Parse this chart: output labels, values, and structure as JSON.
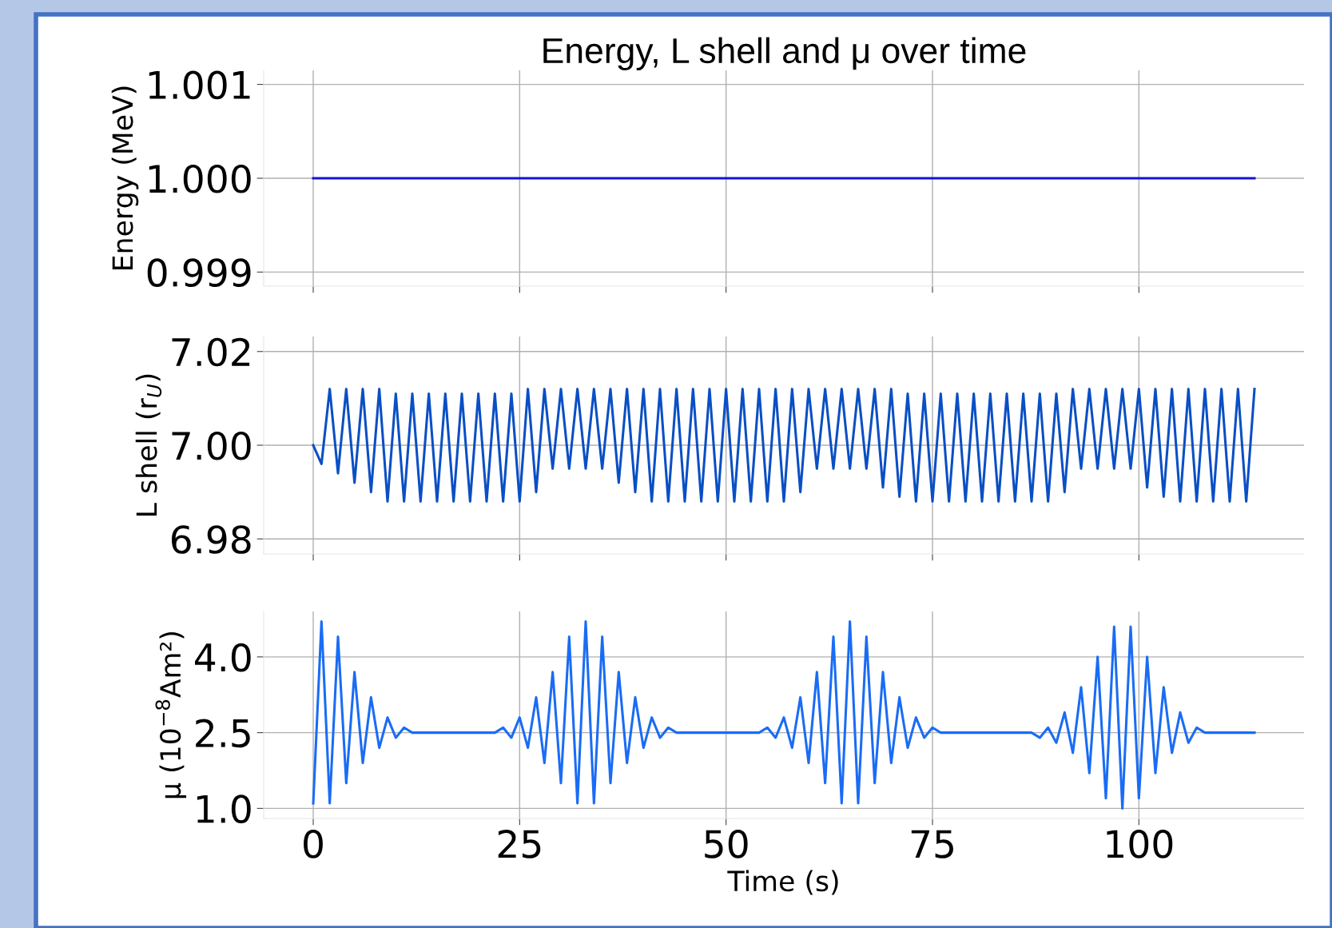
{
  "chart_data": [
    {
      "type": "line",
      "title": "Energy, L shell and μ over time",
      "ylabel": "Energy (MeV)",
      "x": [
        0,
        114
      ],
      "xlim": [
        -6,
        120
      ],
      "xticks": [
        {
          "value": 0,
          "label": null
        },
        {
          "value": 25,
          "label": null
        },
        {
          "value": 50,
          "label": null
        },
        {
          "value": 75,
          "label": null
        },
        {
          "value": 100,
          "label": null
        }
      ],
      "ylim": [
        0.99885,
        1.00115
      ],
      "yticks": [
        {
          "value": 0.999,
          "label": "0.999"
        },
        {
          "value": 1.0,
          "label": "1.000"
        },
        {
          "value": 1.001,
          "label": "1.001"
        }
      ],
      "grid": true,
      "tick_labels": "y",
      "series": [
        {
          "color": "#1414d2",
          "values": [
            1.0,
            1.0
          ]
        }
      ]
    },
    {
      "type": "line",
      "ylabel": "L shell (r$_{U}$)",
      "x": [
        0,
        1,
        2,
        3,
        4,
        5,
        6,
        7,
        8,
        9,
        10,
        11,
        12,
        13,
        14,
        15,
        16,
        17,
        18,
        19,
        20,
        21,
        22,
        23,
        24,
        25,
        26,
        27,
        28,
        29,
        30,
        31,
        32,
        33,
        34,
        35,
        36,
        37,
        38,
        39,
        40,
        41,
        42,
        43,
        44,
        45,
        46,
        47,
        48,
        49,
        50,
        51,
        52,
        53,
        54,
        55,
        56,
        57,
        58,
        59,
        60,
        61,
        62,
        63,
        64,
        65,
        66,
        67,
        68,
        69,
        70,
        71,
        72,
        73,
        74,
        75,
        76,
        77,
        78,
        79,
        80,
        81,
        82,
        83,
        84,
        85,
        86,
        87,
        88,
        89,
        90,
        91,
        92,
        93,
        94,
        95,
        96,
        97,
        98,
        99,
        100,
        101,
        102,
        103,
        104,
        105,
        106,
        107,
        108,
        109,
        110,
        111,
        112,
        113,
        114
      ],
      "xlim": [
        -6,
        120
      ],
      "xticks": [
        {
          "value": 0,
          "label": null
        },
        {
          "value": 25,
          "label": null
        },
        {
          "value": 50,
          "label": null
        },
        {
          "value": 75,
          "label": null
        },
        {
          "value": 100,
          "label": null
        }
      ],
      "ylim": [
        6.9768,
        7.0232
      ],
      "yticks": [
        {
          "value": 6.98,
          "label": "6.98"
        },
        {
          "value": 7.0,
          "label": "7.00"
        },
        {
          "value": 7.02,
          "label": "7.02"
        }
      ],
      "grid": true,
      "tick_labels": "y",
      "series": [
        {
          "color": "#0a4fc4",
          "values": [
            7.0,
            6.996,
            7.012,
            6.994,
            7.012,
            6.992,
            7.012,
            6.99,
            7.012,
            6.988,
            7.011,
            6.988,
            7.011,
            6.988,
            7.011,
            6.988,
            7.011,
            6.988,
            7.011,
            6.988,
            7.011,
            6.988,
            7.011,
            6.988,
            7.011,
            6.988,
            7.012,
            6.99,
            7.012,
            6.995,
            7.012,
            6.995,
            7.012,
            6.995,
            7.012,
            6.995,
            7.012,
            6.992,
            7.012,
            6.99,
            7.012,
            6.988,
            7.012,
            6.988,
            7.012,
            6.988,
            7.012,
            6.988,
            7.012,
            6.988,
            7.012,
            6.988,
            7.012,
            6.988,
            7.012,
            6.988,
            7.012,
            6.988,
            7.012,
            6.99,
            7.012,
            6.995,
            7.012,
            6.995,
            7.012,
            6.995,
            7.012,
            6.995,
            7.012,
            6.991,
            7.012,
            6.989,
            7.011,
            6.988,
            7.011,
            6.988,
            7.011,
            6.988,
            7.011,
            6.988,
            7.011,
            6.988,
            7.011,
            6.988,
            7.011,
            6.988,
            7.011,
            6.988,
            7.011,
            6.988,
            7.011,
            6.99,
            7.012,
            6.995,
            7.012,
            6.995,
            7.012,
            6.995,
            7.012,
            6.995,
            7.012,
            6.991,
            7.012,
            6.989,
            7.012,
            6.988,
            7.012,
            6.988,
            7.012,
            6.988,
            7.012,
            6.988,
            7.012,
            6.988,
            7.012
          ]
        }
      ]
    },
    {
      "type": "line",
      "xlabel": "Time (s)",
      "ylabel": "μ (10$^{−8}$Am²)",
      "x": [
        0,
        1,
        2,
        3,
        4,
        5,
        6,
        7,
        8,
        9,
        10,
        11,
        12,
        13,
        14,
        15,
        16,
        17,
        18,
        19,
        20,
        21,
        22,
        23,
        24,
        25,
        26,
        27,
        28,
        29,
        30,
        31,
        32,
        33,
        34,
        35,
        36,
        37,
        38,
        39,
        40,
        41,
        42,
        43,
        44,
        45,
        46,
        47,
        48,
        49,
        50,
        51,
        52,
        53,
        54,
        55,
        56,
        57,
        58,
        59,
        60,
        61,
        62,
        63,
        64,
        65,
        66,
        67,
        68,
        69,
        70,
        71,
        72,
        73,
        74,
        75,
        76,
        77,
        78,
        79,
        80,
        81,
        82,
        83,
        84,
        85,
        86,
        87,
        88,
        89,
        90,
        91,
        92,
        93,
        94,
        95,
        96,
        97,
        98,
        99,
        100,
        101,
        102,
        103,
        104,
        105,
        106,
        107,
        108,
        109,
        110,
        111,
        112,
        113,
        114
      ],
      "xlim": [
        -6,
        120
      ],
      "xticks": [
        0,
        25,
        50,
        75,
        100
      ],
      "ylim": [
        0.8,
        4.9
      ],
      "yticks": [
        {
          "value": 1.0,
          "label": "1.0"
        },
        {
          "value": 2.5,
          "label": "2.5"
        },
        {
          "value": 4.0,
          "label": "4.0"
        }
      ],
      "grid": true,
      "series": [
        {
          "color": "#1a6cf5",
          "values": [
            1.1,
            4.7,
            1.1,
            4.4,
            1.5,
            3.7,
            1.9,
            3.2,
            2.2,
            2.8,
            2.4,
            2.6,
            2.5,
            2.5,
            2.5,
            2.5,
            2.5,
            2.5,
            2.5,
            2.5,
            2.5,
            2.5,
            2.5,
            2.6,
            2.4,
            2.8,
            2.2,
            3.2,
            1.9,
            3.7,
            1.5,
            4.4,
            1.1,
            4.7,
            1.1,
            4.4,
            1.5,
            3.7,
            1.9,
            3.2,
            2.2,
            2.8,
            2.4,
            2.6,
            2.5,
            2.5,
            2.5,
            2.5,
            2.5,
            2.5,
            2.5,
            2.5,
            2.5,
            2.5,
            2.5,
            2.6,
            2.4,
            2.8,
            2.2,
            3.2,
            1.9,
            3.7,
            1.5,
            4.4,
            1.1,
            4.7,
            1.1,
            4.4,
            1.5,
            3.7,
            1.9,
            3.2,
            2.2,
            2.8,
            2.4,
            2.6,
            2.5,
            2.5,
            2.5,
            2.5,
            2.5,
            2.5,
            2.5,
            2.5,
            2.5,
            2.5,
            2.5,
            2.5,
            2.4,
            2.6,
            2.3,
            2.9,
            2.1,
            3.4,
            1.7,
            4.0,
            1.2,
            4.6,
            1.0,
            4.6,
            1.2,
            4.0,
            1.7,
            3.4,
            2.1,
            2.9,
            2.3,
            2.6,
            2.5,
            2.5,
            2.5,
            2.5,
            2.5,
            2.5,
            2.5
          ]
        }
      ]
    }
  ]
}
